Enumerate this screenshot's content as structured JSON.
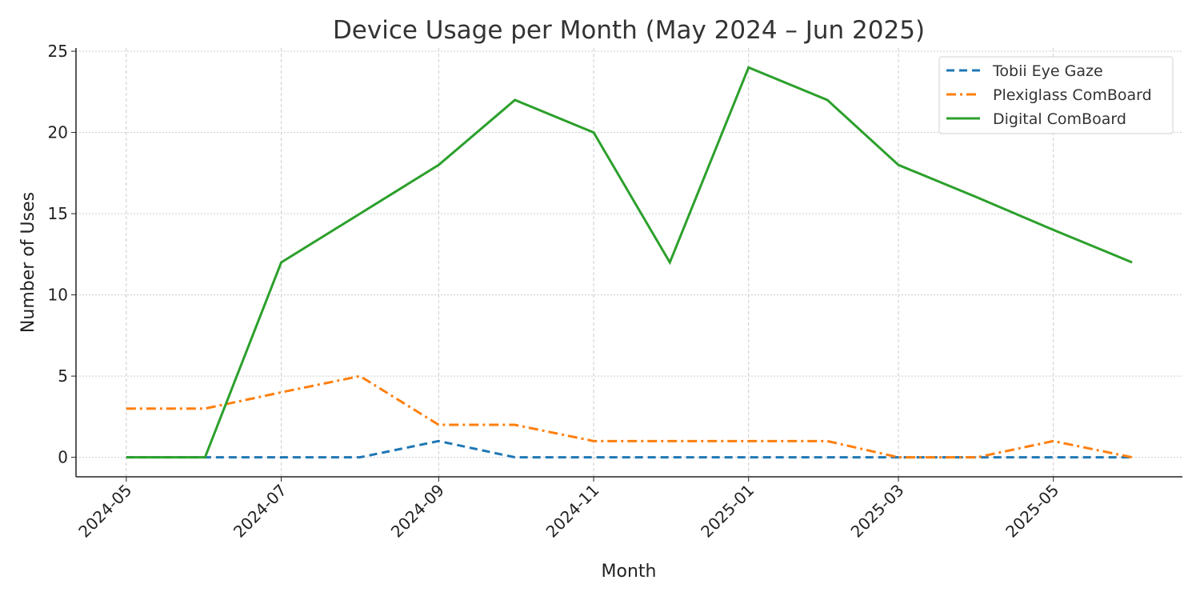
{
  "chart_data": {
    "type": "line",
    "title": "Device Usage per Month (May 2024 – Jun 2025)",
    "xlabel": "Month",
    "ylabel": "Number of Uses",
    "x": [
      "2024-05",
      "2024-06",
      "2024-07",
      "2024-08",
      "2024-09",
      "2024-10",
      "2024-11",
      "2024-12",
      "2025-01",
      "2025-02",
      "2025-03",
      "2025-04",
      "2025-05",
      "2025-06"
    ],
    "x_ticks": [
      "2024-05",
      "2024-07",
      "2024-09",
      "2024-11",
      "2025-01",
      "2025-03",
      "2025-05"
    ],
    "y_ticks": [
      0,
      5,
      10,
      15,
      20,
      25
    ],
    "ylim": [
      -1.2,
      25.2
    ],
    "grid": true,
    "legend_position": "top-right",
    "series": [
      {
        "name": "Tobii Eye Gaze",
        "color": "#1f77b4",
        "style": "dashed",
        "values": [
          0,
          0,
          0,
          0,
          1,
          0,
          0,
          0,
          0,
          0,
          0,
          0,
          0,
          0
        ]
      },
      {
        "name": "Plexiglass ComBoard",
        "color": "#ff7f0e",
        "style": "dashdot",
        "values": [
          3,
          3,
          4,
          5,
          2,
          2,
          1,
          1,
          1,
          1,
          0,
          0,
          1,
          0
        ]
      },
      {
        "name": "Digital ComBoard",
        "color": "#2ca02c",
        "style": "solid",
        "values": [
          0,
          0,
          12,
          15,
          18,
          22,
          20,
          12,
          24,
          22,
          18,
          16,
          14,
          12
        ]
      }
    ]
  }
}
